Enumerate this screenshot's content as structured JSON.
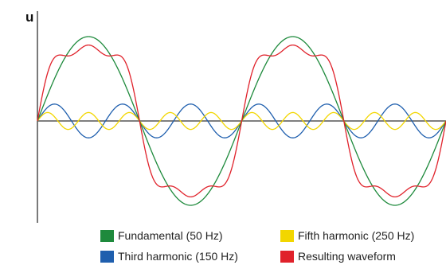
{
  "chart_data": {
    "type": "line",
    "ylabel": "u",
    "xlabel": "",
    "title": "",
    "x_range": [
      0,
      0.04
    ],
    "y_range": [
      -1.0,
      1.0
    ],
    "grid": false,
    "legend_position": "bottom",
    "series": [
      {
        "name": "Fundamental (50 Hz)",
        "frequency": 50,
        "amplitude": 1.0,
        "color": "#1e8a3c"
      },
      {
        "name": "Third harmonic (150 Hz)",
        "frequency": 150,
        "amplitude": 0.2,
        "color": "#1f5fae"
      },
      {
        "name": "Fifth harmonic (250 Hz)",
        "frequency": 250,
        "amplitude": 0.1,
        "color": "#f2d600"
      },
      {
        "name": "Resulting waveform",
        "frequency": null,
        "amplitude": null,
        "color": "#e0222b"
      }
    ]
  }
}
